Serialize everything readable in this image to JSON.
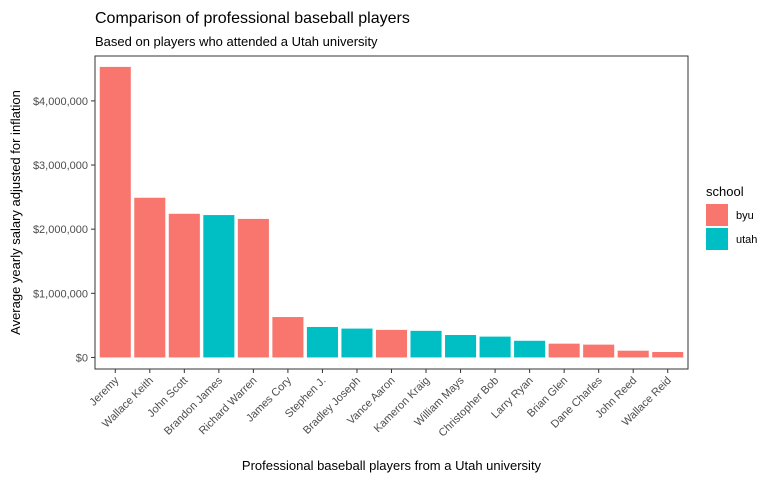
{
  "chart_data": {
    "type": "bar",
    "title": "Comparison of professional baseball players",
    "subtitle": "Based on players who attended a Utah university",
    "xlabel": "Professional baseball players from a Utah university",
    "ylabel": "Average yearly salary adjusted for inflation",
    "ylim": [
      -180000,
      4700000
    ],
    "yticks": [
      0,
      1000000,
      2000000,
      3000000,
      4000000
    ],
    "ytick_labels": [
      "$0",
      "$1,000,000",
      "$2,000,000",
      "$3,000,000",
      "$4,000,000"
    ],
    "categories": [
      "Jeremy",
      "Wallace Keith",
      "John Scott",
      "Brandon James",
      "Richard Warren",
      "James Cory",
      "Stephen J.",
      "Bradley Joseph",
      "Vance Aaron",
      "Kameron Kraig",
      "William Mays",
      "Christopher Bob",
      "Larry Ryan",
      "Brian Glen",
      "Dane Charles",
      "John Reed",
      "Wallace Reid"
    ],
    "values": [
      4530000,
      2490000,
      2240000,
      2220000,
      2160000,
      630000,
      475000,
      450000,
      430000,
      415000,
      350000,
      325000,
      260000,
      215000,
      200000,
      105000,
      85000
    ],
    "groups": [
      "byu",
      "byu",
      "byu",
      "utah",
      "byu",
      "byu",
      "utah",
      "utah",
      "byu",
      "utah",
      "utah",
      "utah",
      "utah",
      "byu",
      "byu",
      "byu",
      "byu"
    ],
    "legend": {
      "title": "school",
      "position": "right",
      "entries": [
        {
          "label": "byu",
          "color": "#F8766D"
        },
        {
          "label": "utah",
          "color": "#00BFC4"
        }
      ]
    },
    "grid": false
  }
}
